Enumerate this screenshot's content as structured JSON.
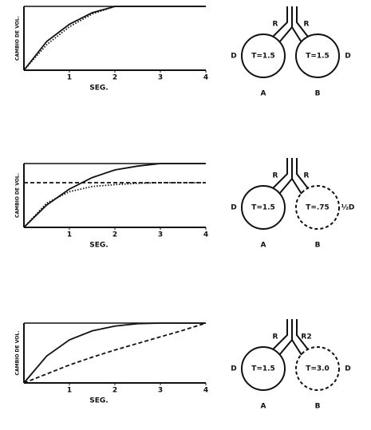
{
  "chart_data": [
    {
      "type": "line",
      "y_label": "CAMBIO DE VOL.",
      "x_label": "SEG.",
      "x": [
        0,
        0.5,
        1,
        1.5,
        2,
        2.5,
        3,
        3.5,
        4
      ],
      "xlim": [
        0,
        4
      ],
      "xticks": [
        1,
        2,
        3,
        4
      ],
      "ylim": [
        0,
        1
      ],
      "series": [
        {
          "color": "#111",
          "style": "solid",
          "values": [
            0,
            0.45,
            0.72,
            0.9,
            1,
            1,
            1,
            1,
            1
          ]
        },
        {
          "color": "#111",
          "style": "dotted",
          "values": [
            0,
            0.4,
            0.68,
            0.88,
            1,
            1,
            1,
            1,
            1
          ]
        }
      ]
    },
    {
      "type": "line",
      "y_label": "CAMBIO DE VOL.",
      "x_label": "SEG.",
      "x": [
        0,
        0.5,
        1,
        1.5,
        2,
        2.5,
        3,
        3.5,
        4
      ],
      "xlim": [
        0,
        4
      ],
      "xticks": [
        1,
        2,
        3,
        4
      ],
      "ylim": [
        0,
        1
      ],
      "series": [
        {
          "color": "#111",
          "style": "solid",
          "values": [
            0,
            0.35,
            0.6,
            0.78,
            0.9,
            0.96,
            1,
            1,
            1
          ]
        },
        {
          "color": "#111",
          "style": "dashed",
          "values": [
            0.7,
            0.7,
            0.7,
            0.7,
            0.7,
            0.7,
            0.7,
            0.7,
            0.7
          ]
        },
        {
          "color": "#111",
          "style": "dotted",
          "values": [
            0,
            0.38,
            0.56,
            0.64,
            0.67,
            0.69,
            0.7,
            0.7,
            0.7
          ]
        }
      ]
    },
    {
      "type": "line",
      "y_label": "CAMBIO DE VOL.",
      "x_label": "SEG.",
      "x": [
        0,
        0.5,
        1,
        1.5,
        2,
        2.5,
        3,
        3.5,
        4
      ],
      "xlim": [
        0,
        4
      ],
      "xticks": [
        1,
        2,
        3,
        4
      ],
      "ylim": [
        0,
        1
      ],
      "series": [
        {
          "color": "#111",
          "style": "solid",
          "values": [
            0,
            0.45,
            0.72,
            0.87,
            0.95,
            0.99,
            1,
            1,
            1
          ]
        },
        {
          "color": "#111",
          "style": "dashed",
          "values": [
            0,
            0.15,
            0.3,
            0.43,
            0.55,
            0.66,
            0.77,
            0.88,
            1
          ]
        }
      ]
    }
  ],
  "diagrams": [
    {
      "resistance_a": "R",
      "resistance_b": "R",
      "compartment_a": "T=1.5",
      "compartment_b": "T=1.5",
      "compliance_a": "D",
      "compliance_b": "D",
      "label_a": "A",
      "label_b": "B"
    },
    {
      "resistance_a": "R",
      "resistance_b": "R",
      "compartment_a": "T=1.5",
      "compartment_b": "T=.75",
      "compliance_a": "D",
      "compliance_b": "½D",
      "label_a": "A",
      "label_b": "B"
    },
    {
      "resistance_a": "R",
      "resistance_b": "R2",
      "compartment_a": "T=1.5",
      "compartment_b": "T=3.0",
      "compliance_a": "D",
      "compliance_b": "D",
      "label_a": "A",
      "label_b": "B"
    }
  ]
}
